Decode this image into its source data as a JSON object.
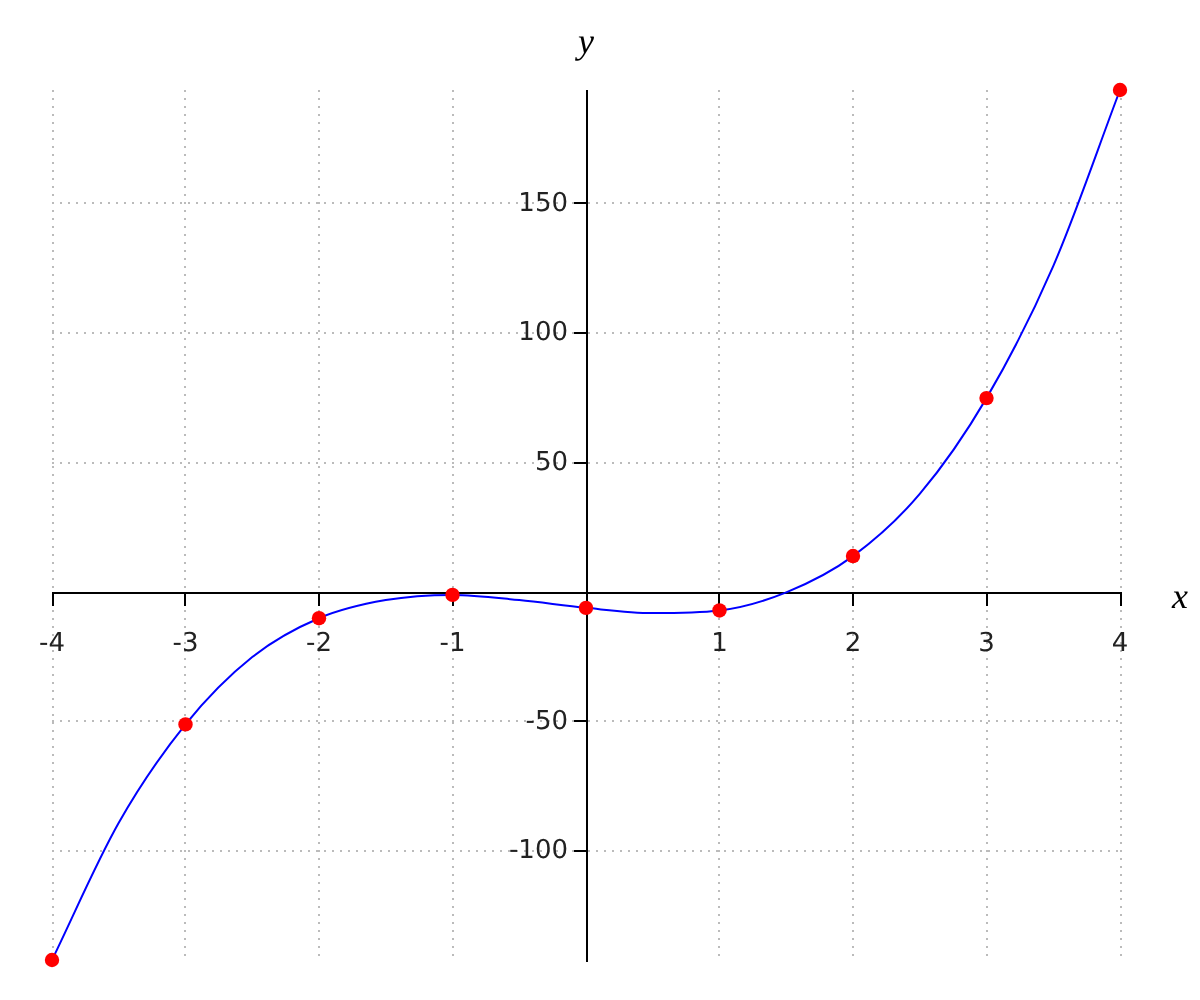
{
  "chart_data": {
    "type": "line",
    "xlabel": "x",
    "ylabel": "y",
    "xlim": [
      -4,
      4
    ],
    "ylim": [
      -142,
      194
    ],
    "xticks": [
      -4,
      -3,
      -2,
      -1,
      1,
      2,
      3,
      4
    ],
    "yticks": [
      -100,
      -50,
      50,
      100,
      150
    ],
    "grid": true,
    "series": [
      {
        "color": "#0000ff",
        "marker": "none",
        "x": [
          -4,
          -3.5,
          -3,
          -2.5,
          -2,
          -1.5,
          -1,
          -0.5,
          0,
          0.5,
          1,
          1.5,
          2,
          2.5,
          3,
          3.5,
          4
        ],
        "values": [
          -142,
          -89,
          -51,
          -25,
          -10,
          -3,
          -1,
          -3,
          -6,
          -8,
          -7,
          0,
          14,
          38,
          75,
          126,
          194
        ]
      },
      {
        "type": "scatter",
        "color": "#ff0000",
        "marker": "circle",
        "x": [
          -4,
          -3,
          -2,
          -1,
          0,
          1,
          2,
          3,
          4
        ],
        "values": [
          -142,
          -51,
          -10,
          -1,
          -6,
          -7,
          14,
          75,
          194
        ]
      }
    ]
  }
}
